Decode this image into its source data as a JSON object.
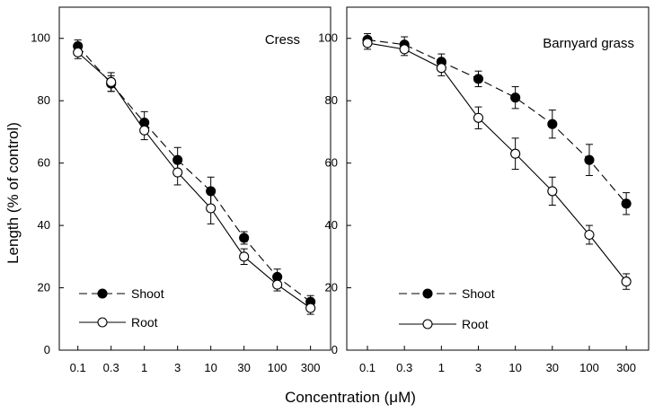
{
  "xlabel": "Concentration  (μM)",
  "ylabel": "Length   (% of control)",
  "chart_data": [
    {
      "type": "line",
      "title": "Cress",
      "categories": [
        "0.1",
        "0.3",
        "1",
        "3",
        "10",
        "30",
        "100",
        "300"
      ],
      "ylim": [
        0,
        110
      ],
      "yticks": [
        0,
        20,
        40,
        60,
        80,
        100
      ],
      "series": [
        {
          "name": "Shoot",
          "marker": "filled",
          "line": "dashed",
          "values": [
            97.5,
            85.5,
            73,
            61,
            51,
            36,
            23.5,
            15.5
          ],
          "errors": [
            2,
            2.5,
            3.5,
            4,
            4.5,
            2,
            2.5,
            2
          ]
        },
        {
          "name": "Root",
          "marker": "open",
          "line": "solid",
          "values": [
            95.5,
            86,
            70.5,
            57,
            45.5,
            30,
            21,
            13.5
          ],
          "errors": [
            2,
            3,
            3,
            4,
            5,
            2.5,
            2,
            2
          ]
        }
      ]
    },
    {
      "type": "line",
      "title": "Barnyard grass",
      "categories": [
        "0.1",
        "0.3",
        "1",
        "3",
        "10",
        "30",
        "100",
        "300"
      ],
      "ylim": [
        0,
        110
      ],
      "yticks": [
        0,
        20,
        40,
        60,
        80,
        100
      ],
      "series": [
        {
          "name": "Shoot",
          "marker": "filled",
          "line": "dashed",
          "values": [
            99.5,
            98,
            92.5,
            87,
            81,
            72.5,
            61,
            47
          ],
          "errors": [
            2,
            2.5,
            2.5,
            2.5,
            3.5,
            4.5,
            5,
            3.5
          ]
        },
        {
          "name": "Root",
          "marker": "open",
          "line": "solid",
          "values": [
            98.5,
            96.5,
            90.5,
            74.5,
            63,
            51,
            37,
            22
          ],
          "errors": [
            2,
            2,
            2.5,
            3.5,
            5,
            4.5,
            3,
            2.5
          ]
        }
      ]
    }
  ]
}
